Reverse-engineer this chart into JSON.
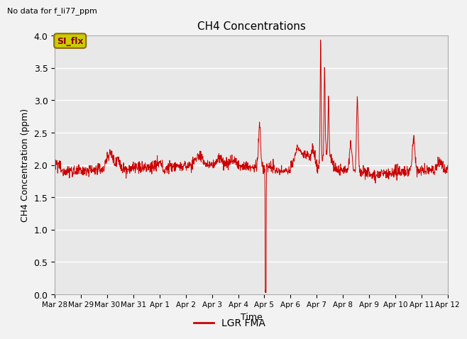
{
  "title": "CH4 Concentrations",
  "xlabel": "Time",
  "ylabel": "CH4 Concentration (ppm)",
  "top_left_text": "No data for f_li77_ppm",
  "legend_label": "LGR FMA",
  "legend_line_color": "#cc0000",
  "si_flx_label": "SI_flx",
  "si_flx_bg": "#cccc00",
  "si_flx_border": "#8b6914",
  "si_flx_text_color": "#8b0000",
  "line_color": "#cc0000",
  "background_color": "#e8e8e8",
  "fig_bg": "#f2f2f2",
  "ylim": [
    0.0,
    4.0
  ],
  "yticks": [
    0.0,
    0.5,
    1.0,
    1.5,
    2.0,
    2.5,
    3.0,
    3.5,
    4.0
  ],
  "xtick_labels": [
    "Mar 28",
    "Mar 29",
    "Mar 30",
    "Mar 31",
    "Apr 1",
    "Apr 2",
    "Apr 3",
    "Apr 4",
    "Apr 5",
    "Apr 6",
    "Apr 7",
    "Apr 8",
    "Apr 9",
    "Apr 10",
    "Apr 11",
    "Apr 12"
  ]
}
